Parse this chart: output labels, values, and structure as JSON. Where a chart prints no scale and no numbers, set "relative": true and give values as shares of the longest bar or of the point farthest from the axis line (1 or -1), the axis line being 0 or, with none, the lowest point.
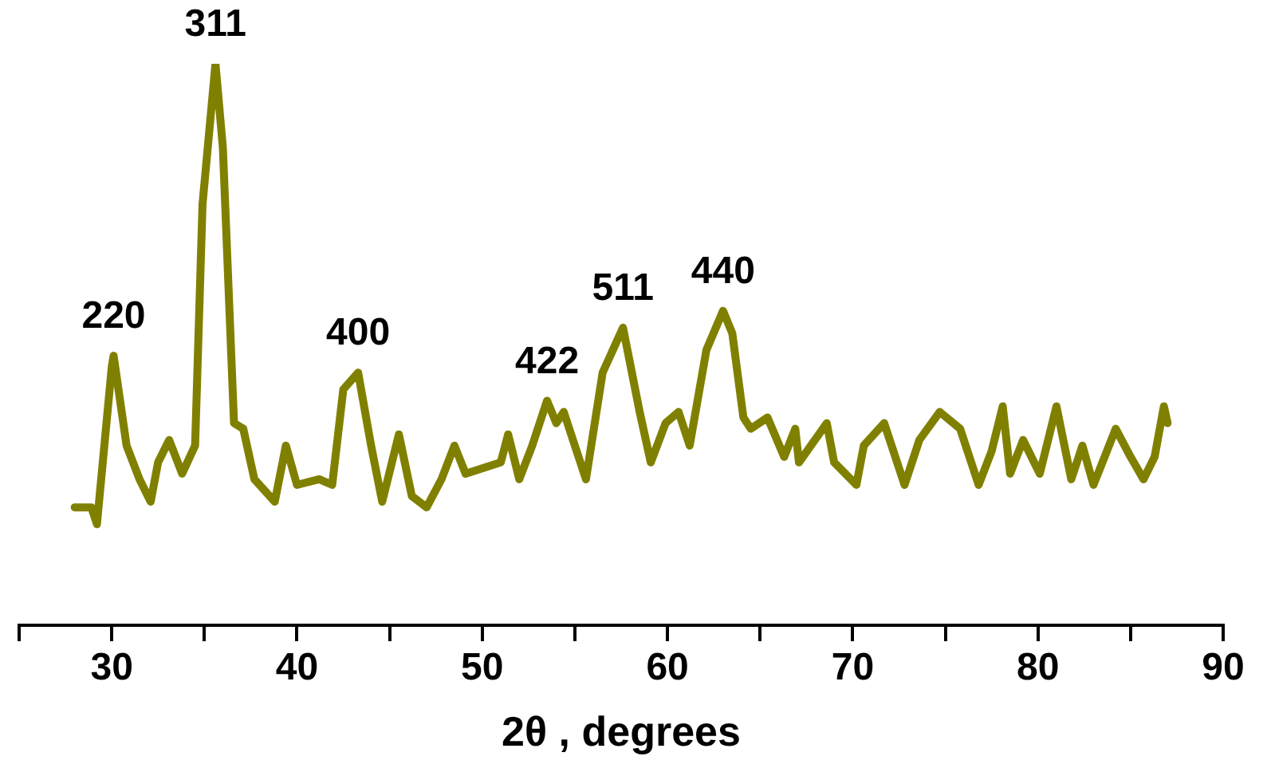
{
  "chart_data": {
    "type": "line",
    "xlabel": "2θ , degrees",
    "relative": true,
    "xlim": [
      25,
      90
    ],
    "xticks": [
      {
        "value": 25,
        "label": null
      },
      30,
      {
        "value": 35,
        "label": null
      },
      40,
      {
        "value": 45,
        "label": null
      },
      50,
      {
        "value": 55,
        "label": null
      },
      60,
      {
        "value": 65,
        "label": null
      },
      70,
      {
        "value": 75,
        "label": null
      },
      80,
      {
        "value": 85,
        "label": null
      },
      90
    ],
    "grid": false,
    "legend": false,
    "marker": "none",
    "line_style": "solid",
    "series": [
      {
        "color": "#808000",
        "x": [
          28.0,
          28.9,
          29.2,
          30.0,
          30.1,
          30.8,
          31.5,
          32.1,
          32.5,
          33.1,
          33.8,
          34.5,
          34.9,
          35.6,
          36.0,
          36.6,
          37.1,
          37.7,
          38.8,
          39.4,
          40.0,
          41.2,
          41.9,
          42.5,
          43.3,
          44.0,
          44.6,
          45.5,
          46.2,
          47.0,
          47.8,
          48.5,
          49.1,
          51.0,
          51.4,
          52.0,
          52.7,
          53.5,
          54.0,
          54.4,
          55.6,
          56.5,
          57.6,
          58.5,
          59.1,
          59.9,
          60.6,
          61.2,
          62.1,
          63.0,
          63.5,
          64.1,
          64.5,
          65.4,
          66.3,
          66.9,
          67.1,
          68.6,
          69.0,
          70.2,
          70.6,
          71.7,
          72.8,
          73.6,
          74.7,
          75.8,
          76.8,
          77.5,
          78.1,
          78.5,
          79.2,
          80.1,
          81.0,
          81.8,
          82.4,
          83.0,
          84.2,
          85.0,
          85.7,
          86.3,
          86.8,
          87.0
        ],
        "values": [
          0.21,
          0.21,
          0.18,
          0.46,
          0.48,
          0.32,
          0.26,
          0.22,
          0.29,
          0.33,
          0.27,
          0.32,
          0.75,
          1.0,
          0.85,
          0.36,
          0.35,
          0.26,
          0.22,
          0.32,
          0.25,
          0.26,
          0.25,
          0.42,
          0.45,
          0.32,
          0.22,
          0.34,
          0.23,
          0.21,
          0.26,
          0.32,
          0.27,
          0.29,
          0.34,
          0.26,
          0.32,
          0.4,
          0.36,
          0.38,
          0.26,
          0.45,
          0.53,
          0.38,
          0.29,
          0.36,
          0.38,
          0.32,
          0.49,
          0.56,
          0.52,
          0.37,
          0.35,
          0.37,
          0.3,
          0.35,
          0.29,
          0.36,
          0.29,
          0.25,
          0.32,
          0.36,
          0.25,
          0.33,
          0.38,
          0.35,
          0.25,
          0.31,
          0.39,
          0.27,
          0.33,
          0.27,
          0.39,
          0.26,
          0.32,
          0.25,
          0.35,
          0.3,
          0.26,
          0.3,
          0.39,
          0.36
        ]
      }
    ],
    "annotations": [
      {
        "text": "220",
        "x": 30.1,
        "y": 0.48
      },
      {
        "text": "311",
        "x": 35.6,
        "y": 1.0
      },
      {
        "text": "400",
        "x": 43.3,
        "y": 0.45
      },
      {
        "text": "422",
        "x": 53.5,
        "y": 0.4
      },
      {
        "text": "511",
        "x": 57.6,
        "y": 0.53
      },
      {
        "text": "440",
        "x": 63.0,
        "y": 0.56
      }
    ]
  }
}
